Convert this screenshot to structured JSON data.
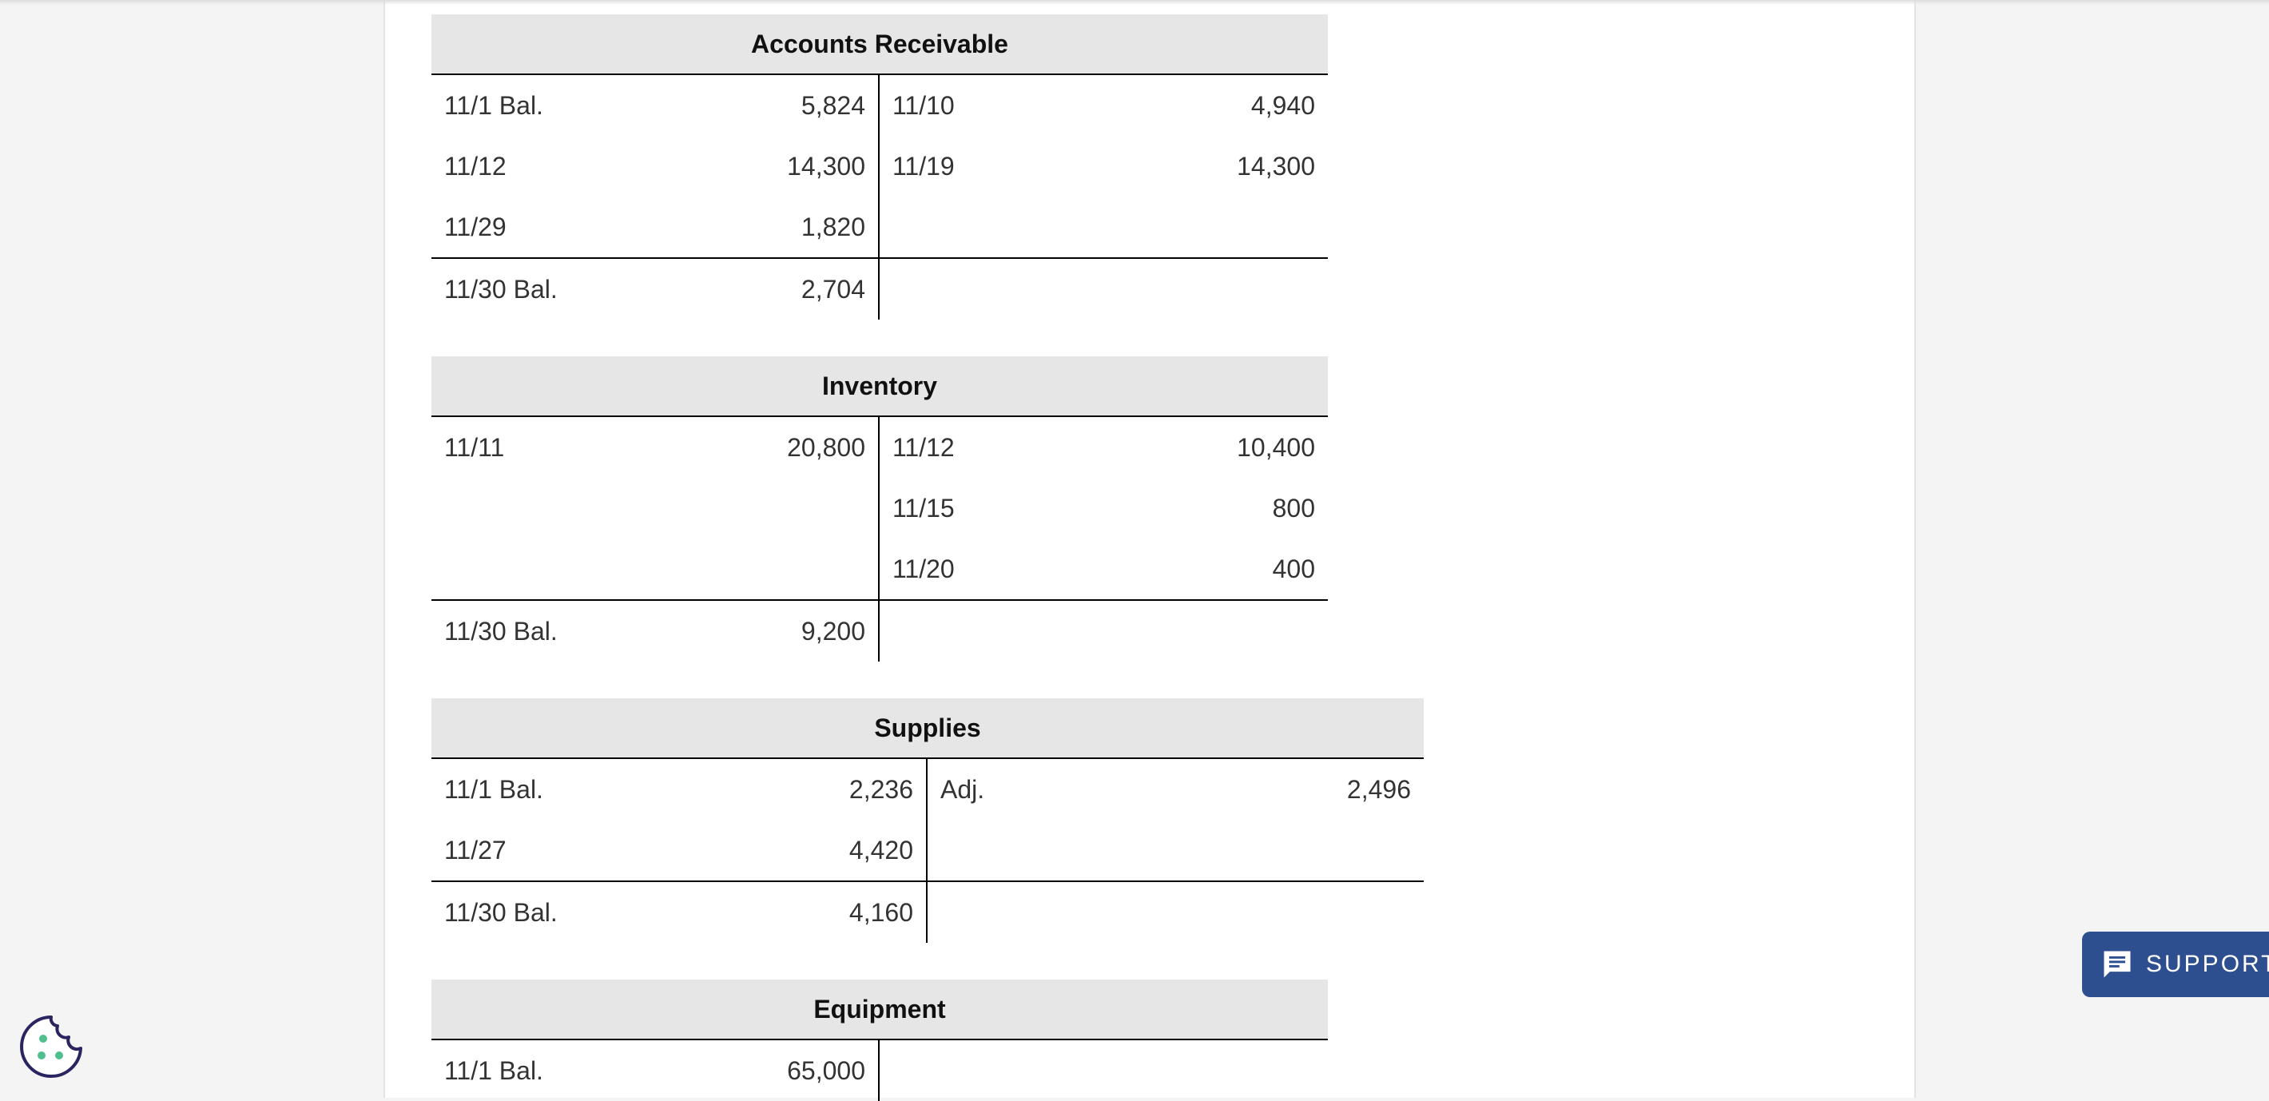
{
  "accounts": [
    {
      "title": "Accounts Receivable",
      "rows": [
        {
          "dl": "11/1 Bal.",
          "dv": "5,824",
          "cl": "11/10",
          "cv": "4,940"
        },
        {
          "dl": "11/12",
          "dv": "14,300",
          "cl": "11/19",
          "cv": "14,300"
        },
        {
          "dl": "11/29",
          "dv": "1,820",
          "cl": "",
          "cv": ""
        }
      ],
      "balance": {
        "label": "11/30 Bal.",
        "value": "2,704"
      }
    },
    {
      "title": "Inventory",
      "rows": [
        {
          "dl": "11/11",
          "dv": "20,800",
          "cl": "11/12",
          "cv": "10,400"
        },
        {
          "dl": "",
          "dv": "",
          "cl": "11/15",
          "cv": "800"
        },
        {
          "dl": "",
          "dv": "",
          "cl": "11/20",
          "cv": "400"
        }
      ],
      "balance": {
        "label": "11/30 Bal.",
        "value": "9,200"
      }
    },
    {
      "title": "Supplies",
      "rows": [
        {
          "dl": "11/1 Bal.",
          "dv": "2,236",
          "cl": "Adj.",
          "cv": "2,496"
        },
        {
          "dl": "11/27",
          "dv": "4,420",
          "cl": "",
          "cv": ""
        }
      ],
      "balance": {
        "label": "11/30 Bal.",
        "value": "4,160"
      }
    },
    {
      "title": "Equipment",
      "rows": [
        {
          "dl": "11/1 Bal.",
          "dv": "65,000",
          "cl": "",
          "cv": ""
        }
      ]
    }
  ],
  "support": {
    "label": "SUPPORT",
    "icon": "chat-icon"
  },
  "cookie": {
    "icon": "cookie-icon"
  },
  "colors": {
    "support_bg": "#2e4f8f",
    "cookie_dots": "#4fc08d",
    "header_bg": "#e6e6e6"
  }
}
